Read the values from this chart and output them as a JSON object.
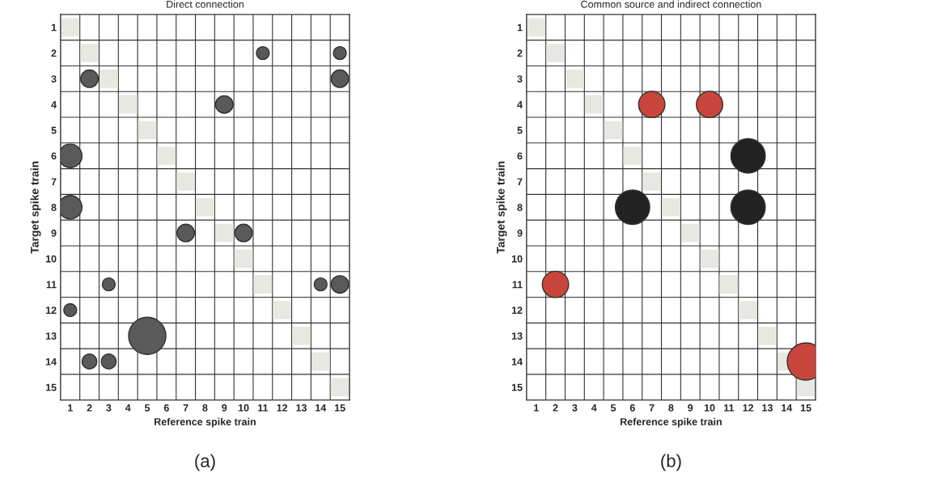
{
  "chart_data": [
    {
      "type": "bubble",
      "title": "Direct connection",
      "xlabel": "Reference spike train",
      "ylabel": "Target spike train",
      "xlim": [
        0.5,
        15.5
      ],
      "ylim": [
        15.5,
        0.5
      ],
      "xticks": [
        1,
        2,
        3,
        4,
        5,
        6,
        7,
        8,
        9,
        10,
        11,
        12,
        13,
        14,
        15
      ],
      "yticks": [
        1,
        2,
        3,
        4,
        5,
        6,
        7,
        8,
        9,
        10,
        11,
        12,
        13,
        14,
        15
      ],
      "grid": true,
      "legend": false,
      "annotations": [
        "(a)"
      ],
      "series": [
        {
          "type": "scatter",
          "marker": "square",
          "color": "#e8e8e2",
          "x": [
            1,
            2,
            3,
            4,
            5,
            6,
            7,
            8,
            9,
            10,
            11,
            12,
            13,
            14,
            15
          ],
          "values": [
            1,
            2,
            3,
            4,
            5,
            6,
            7,
            8,
            9,
            10,
            11,
            12,
            13,
            14,
            15
          ]
        },
        {
          "color": "#5a5a5a",
          "x": [
            11,
            15,
            2,
            15,
            9,
            1,
            1,
            7,
            10,
            3,
            14,
            15,
            1,
            5,
            2,
            3
          ],
          "values": [
            2,
            2,
            3,
            3,
            4,
            6,
            8,
            9,
            9,
            11,
            11,
            11,
            12,
            13,
            14,
            14
          ],
          "sizes": [
            0.12,
            0.12,
            0.22,
            0.22,
            0.22,
            0.4,
            0.4,
            0.22,
            0.22,
            0.12,
            0.12,
            0.22,
            0.12,
            1,
            0.16,
            0.16
          ]
        }
      ]
    },
    {
      "type": "bubble",
      "title": "Common source and indirect connection",
      "xlabel": "Reference spike train",
      "ylabel": "Target spike train",
      "xlim": [
        0.5,
        15.5
      ],
      "ylim": [
        15.5,
        0.5
      ],
      "xticks": [
        1,
        2,
        3,
        4,
        5,
        6,
        7,
        8,
        9,
        10,
        11,
        12,
        13,
        14,
        15
      ],
      "yticks": [
        1,
        2,
        3,
        4,
        5,
        6,
        7,
        8,
        9,
        10,
        11,
        12,
        13,
        14,
        15
      ],
      "grid": true,
      "legend": false,
      "annotations": [
        "(b)"
      ],
      "series": [
        {
          "type": "scatter",
          "marker": "square",
          "color": "#e8e8e2",
          "x": [
            1,
            2,
            3,
            4,
            5,
            6,
            7,
            8,
            9,
            10,
            11,
            12,
            13,
            14,
            15
          ],
          "values": [
            1,
            2,
            3,
            4,
            5,
            6,
            7,
            8,
            9,
            10,
            11,
            12,
            13,
            14,
            15
          ]
        },
        {
          "color": "#c8453c",
          "x": [
            7,
            10,
            2,
            15
          ],
          "values": [
            4,
            4,
            11,
            14
          ],
          "sizes": [
            0.5,
            0.5,
            0.5,
            1
          ]
        },
        {
          "color": "#222222",
          "x": [
            12,
            6,
            12
          ],
          "values": [
            6,
            8,
            8
          ],
          "sizes": [
            0.85,
            0.85,
            0.85
          ]
        }
      ]
    }
  ]
}
